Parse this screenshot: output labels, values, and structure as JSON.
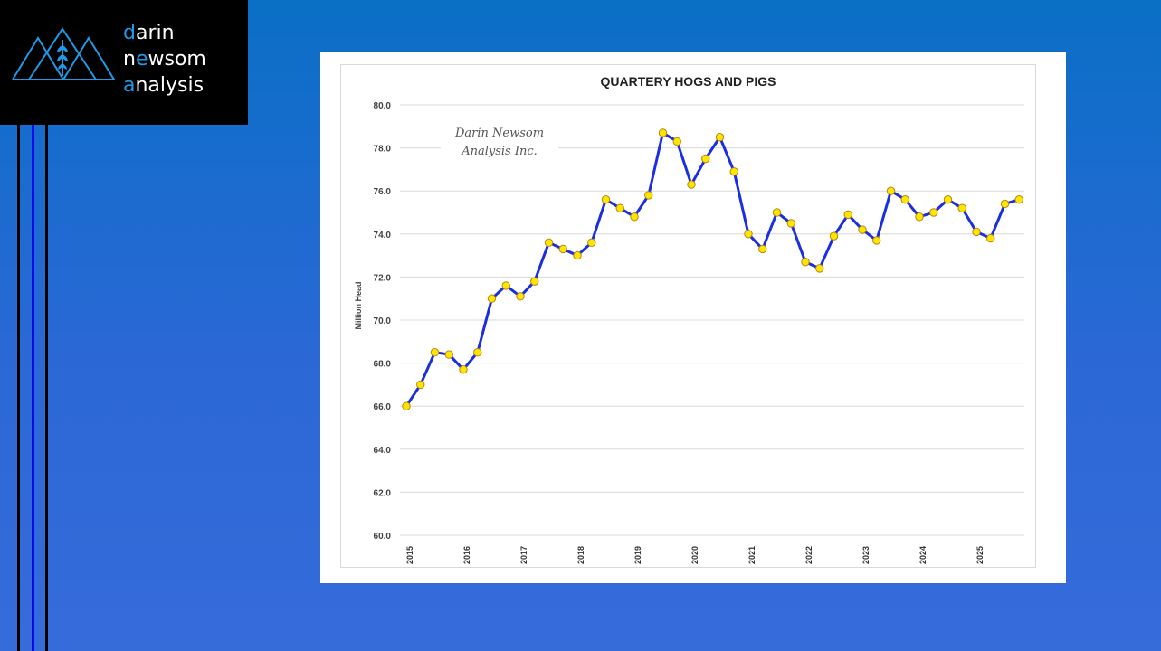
{
  "logo": {
    "lines": [
      {
        "accent": "d",
        "rest": "arin",
        "pre": ""
      },
      {
        "pre": "n",
        "accent": "e",
        "rest": "wsom"
      },
      {
        "accent": "a",
        "rest": "nalysis",
        "pre": ""
      }
    ],
    "brand_color": "#1e9ae8"
  },
  "chart_data": {
    "type": "line",
    "title": "QUARTERY HOGS AND PIGS",
    "ylabel": "Million Head",
    "xlabel": "",
    "ylim": [
      60,
      80
    ],
    "yticks": [
      "60.0",
      "62.0",
      "64.0",
      "66.0",
      "68.0",
      "70.0",
      "72.0",
      "74.0",
      "76.0",
      "78.0",
      "80.0"
    ],
    "year_labels": [
      "2015",
      "2016",
      "2017",
      "2018",
      "2019",
      "2020",
      "2021",
      "2022",
      "2023",
      "2024",
      "2025"
    ],
    "grid": true,
    "legend": "none",
    "line_color": "#1a2fe0",
    "marker_color": "#ffe600",
    "watermark": [
      "Darin Newsom",
      "Analysis Inc."
    ],
    "series": [
      {
        "values": [
          66.0,
          67.0,
          68.5,
          68.4,
          67.7,
          68.5,
          71.0,
          71.6,
          71.1,
          71.8,
          73.6,
          73.3,
          73.0,
          73.6,
          75.6,
          75.2,
          74.8,
          75.8,
          78.7,
          78.3,
          76.3,
          77.5,
          78.5,
          76.9,
          74.0,
          73.3,
          75.0,
          74.5,
          72.7,
          72.4,
          73.9,
          74.9,
          74.2,
          73.7,
          76.0,
          75.6,
          74.8,
          75.0,
          75.6,
          75.2,
          74.1,
          73.8,
          75.4,
          75.6
        ]
      }
    ]
  }
}
